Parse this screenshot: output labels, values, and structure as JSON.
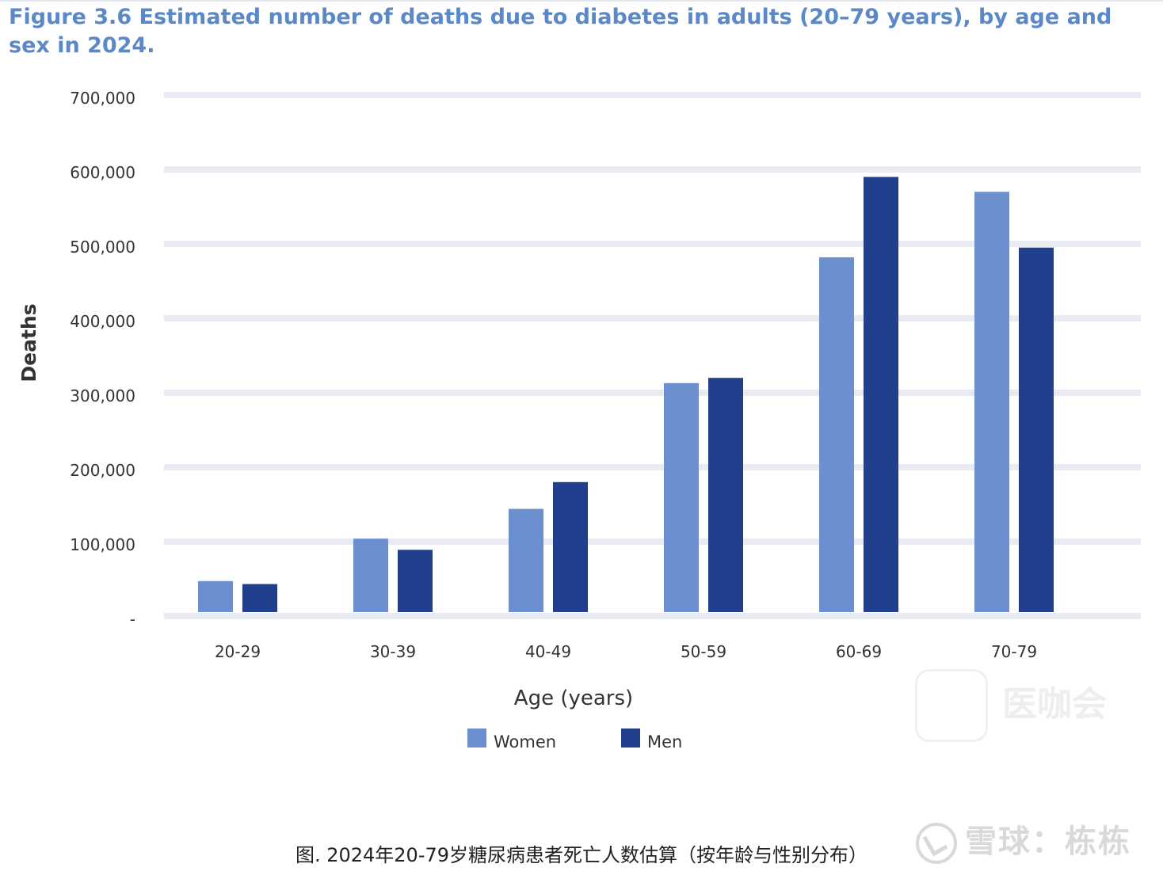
{
  "chart_data": {
    "type": "bar",
    "title": "Figure 3.6 Estimated number of deaths due to diabetes in adults (20–79 years), by age and sex in 2024.",
    "xlabel": "Age (years)",
    "ylabel": "Deaths",
    "categories": [
      "20-29",
      "30-39",
      "40-49",
      "50-59",
      "60-69",
      "70-79"
    ],
    "series": [
      {
        "name": "Women",
        "color": "#6b8fcf",
        "values": [
          47000,
          104000,
          144000,
          313000,
          482000,
          570000
        ]
      },
      {
        "name": "Men",
        "color": "#213f8c",
        "values": [
          43000,
          89000,
          180000,
          320000,
          590000,
          495000
        ]
      }
    ],
    "ylim": [
      0,
      700000
    ],
    "yticks": [
      "-",
      "100,000",
      "200,000",
      "300,000",
      "400,000",
      "500,000",
      "600,000",
      "700,000"
    ],
    "grid": true,
    "legend_position": "bottom-center"
  },
  "watermark": {
    "brand": "雪球：栋栋"
  },
  "ghost_watermark": {
    "text": "医咖会"
  },
  "caption": "图. 2024年20-79岁糖尿病患者死亡人数估算（按年龄与性别分布）"
}
